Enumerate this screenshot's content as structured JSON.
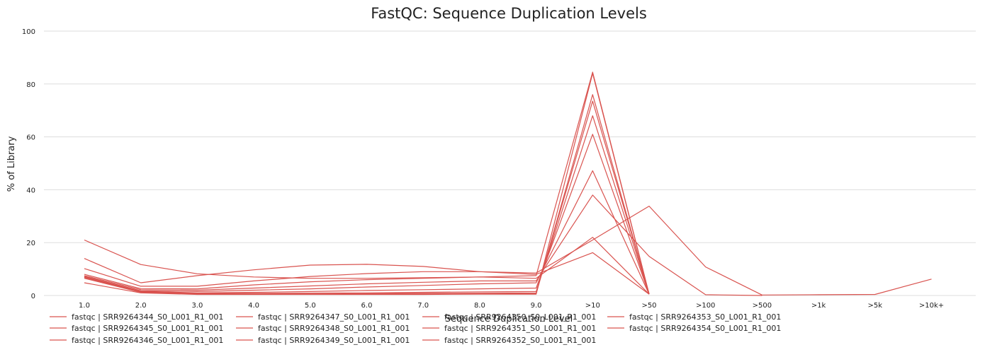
{
  "chart_data": {
    "type": "line",
    "title": "FastQC: Sequence Duplication Levels",
    "xlabel": "Sequence Duplication Level",
    "ylabel": "% of Library",
    "categories": [
      "1.0",
      "2.0",
      "3.0",
      "4.0",
      "5.0",
      "6.0",
      "7.0",
      "8.0",
      "9.0",
      ">10",
      ">50",
      ">100",
      ">500",
      ">1k",
      ">5k",
      ">10k+"
    ],
    "ylim": [
      0,
      100
    ],
    "yticks": [
      0,
      20,
      40,
      60,
      80,
      100
    ],
    "grid": true,
    "legend_position": "bottom",
    "line_color": "#d9534f",
    "series": [
      {
        "name": "fastqc | SRR9264344_S0_L001_R1_001",
        "values": [
          21.0,
          11.7,
          8.2,
          7.0,
          6.5,
          6.5,
          6.7,
          7.0,
          7.5,
          84.5,
          0.5,
          null,
          null,
          null,
          null,
          null
        ]
      },
      {
        "name": "fastqc | SRR9264345_S0_L001_R1_001",
        "values": [
          14.0,
          4.8,
          7.5,
          9.7,
          11.5,
          11.8,
          11.0,
          9.0,
          8.5,
          21.0,
          33.8,
          10.8,
          0.2,
          0.3,
          0.4,
          6.2
        ]
      },
      {
        "name": "fastqc | SRR9264346_S0_L001_R1_001",
        "values": [
          10.2,
          3.5,
          3.5,
          5.5,
          7.2,
          8.3,
          9.0,
          9.0,
          8.0,
          16.2,
          0.5,
          null,
          null,
          null,
          null,
          null
        ]
      },
      {
        "name": "fastqc | SRR9264347_S0_L001_R1_001",
        "values": [
          8.0,
          2.6,
          2.5,
          4.0,
          5.2,
          6.0,
          6.5,
          7.0,
          6.5,
          22.0,
          0.5,
          null,
          null,
          null,
          null,
          null
        ]
      },
      {
        "name": "fastqc | SRR9264348_S0_L001_R1_001",
        "values": [
          7.5,
          2.2,
          2.0,
          2.8,
          3.6,
          4.4,
          5.0,
          5.5,
          5.5,
          38.0,
          14.8,
          0.3,
          0.0,
          null,
          null,
          null
        ]
      },
      {
        "name": "fastqc | SRR9264349_S0_L001_R1_001",
        "values": [
          7.2,
          1.8,
          1.5,
          2.0,
          2.5,
          3.2,
          3.8,
          4.4,
          4.8,
          47.2,
          0.5,
          null,
          null,
          null,
          null,
          null
        ]
      },
      {
        "name": "fastqc | SRR9264350_S0_L001_R1_001",
        "values": [
          7.0,
          1.6,
          1.0,
          1.2,
          1.5,
          1.9,
          2.2,
          2.5,
          2.8,
          61.0,
          0.5,
          null,
          null,
          null,
          null,
          null
        ]
      },
      {
        "name": "fastqc | SRR9264351_S0_L001_R1_001",
        "values": [
          7.0,
          1.4,
          0.8,
          0.8,
          0.9,
          1.0,
          1.2,
          1.4,
          1.5,
          68.0,
          0.6,
          null,
          null,
          null,
          null,
          null
        ]
      },
      {
        "name": "fastqc | SRR9264352_S0_L001_R1_001",
        "values": [
          6.8,
          1.3,
          0.6,
          0.6,
          0.6,
          0.7,
          0.8,
          0.9,
          1.0,
          73.5,
          0.7,
          null,
          null,
          null,
          null,
          null
        ]
      },
      {
        "name": "fastqc | SRR9264353_S0_L001_R1_001",
        "values": [
          6.5,
          1.2,
          0.5,
          0.5,
          0.5,
          0.5,
          0.6,
          0.6,
          0.7,
          76.0,
          0.5,
          null,
          null,
          null,
          null,
          null
        ]
      },
      {
        "name": "fastqc | SRR9264354_S0_L001_R1_001",
        "values": [
          4.8,
          1.0,
          0.4,
          0.4,
          0.4,
          0.4,
          0.4,
          0.5,
          0.5,
          84.0,
          0.5,
          null,
          null,
          null,
          null,
          null
        ]
      }
    ]
  }
}
